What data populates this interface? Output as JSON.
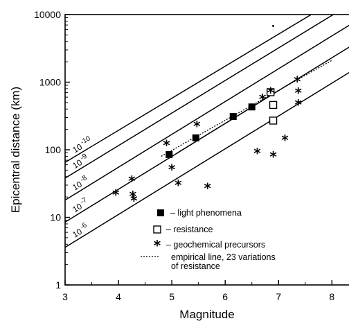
{
  "chart_data": {
    "type": "scatter",
    "xlabel": "Magnitude",
    "ylabel": "Epicentral distance  (km)",
    "xlim": [
      3,
      8.45
    ],
    "ylim": [
      1,
      10000
    ],
    "y_scale": "log",
    "x_ticks": [
      3,
      4,
      5,
      6,
      7,
      8
    ],
    "x_tick_labels": [
      "3",
      "4",
      "5",
      "6",
      "7",
      "8"
    ],
    "y_ticks": [
      1,
      10,
      100,
      1000,
      10000
    ],
    "y_tick_labels": [
      "1",
      "10",
      "100",
      "1000",
      "10000"
    ],
    "grid": false,
    "legend_position": "bottom-right",
    "reference_lines": [
      {
        "label_base": "10",
        "label_exp": "-10",
        "points": [
          [
            3,
            65
          ],
          [
            8.45,
            25000
          ]
        ]
      },
      {
        "label_base": "10",
        "label_exp": "-9",
        "points": [
          [
            3,
            38
          ],
          [
            8.45,
            16000
          ]
        ]
      },
      {
        "label_base": "10",
        "label_exp": "-8",
        "points": [
          [
            3,
            18
          ],
          [
            8.45,
            8000
          ]
        ]
      },
      {
        "label_base": "10",
        "label_exp": "-7",
        "points": [
          [
            3,
            8.5
          ],
          [
            8.45,
            3800
          ]
        ]
      },
      {
        "label_base": "10",
        "label_exp": "-6",
        "points": [
          [
            3,
            3.6
          ],
          [
            8.45,
            1600
          ]
        ]
      }
    ],
    "series": [
      {
        "name": "– light phenomena",
        "marker": "filled-square",
        "points": [
          [
            4.95,
            85
          ],
          [
            5.45,
            150
          ],
          [
            6.15,
            310
          ],
          [
            6.5,
            430
          ]
        ]
      },
      {
        "name": "– resistance",
        "marker": "open-square",
        "points": [
          [
            6.85,
            710
          ],
          [
            6.9,
            460
          ],
          [
            6.9,
            270
          ]
        ]
      },
      {
        "name": "– geochemical precursors",
        "marker": "star",
        "points": [
          [
            3.95,
            23
          ],
          [
            4.25,
            37
          ],
          [
            4.27,
            22
          ],
          [
            4.29,
            19
          ],
          [
            4.9,
            125
          ],
          [
            5.0,
            55
          ],
          [
            5.12,
            32
          ],
          [
            5.47,
            240
          ],
          [
            5.67,
            29
          ],
          [
            6.6,
            95
          ],
          [
            6.7,
            600
          ],
          [
            6.9,
            85
          ],
          [
            7.12,
            150
          ],
          [
            7.35,
            1100
          ],
          [
            7.37,
            740
          ],
          [
            7.37,
            500
          ],
          [
            6.85,
            750
          ]
        ]
      }
    ],
    "empirical_line": {
      "name": "empirical line, 23 variations",
      "name_line2": "of resistance",
      "points": [
        [
          4.8,
          80
        ],
        [
          8.0,
          2100
        ]
      ]
    },
    "stray_point": [
      6.9,
      6800
    ]
  }
}
